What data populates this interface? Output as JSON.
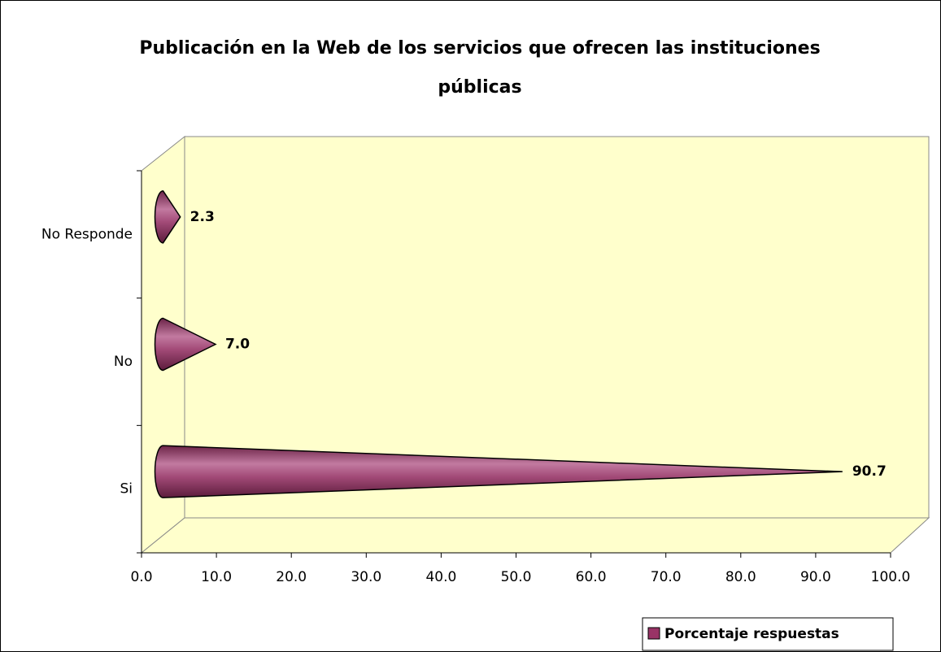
{
  "chart_data": {
    "type": "cone-bar",
    "title": "Publicación en la Web de los servicios que ofrecen las instituciones públicas",
    "categories": [
      "Si",
      "No",
      "No Responde"
    ],
    "series": [
      {
        "name": "Porcentaje respuestas",
        "color": "#993366",
        "values": [
          90.7,
          7.0,
          2.3
        ],
        "value_labels": [
          "90.7",
          "7.0",
          "2.3"
        ]
      }
    ],
    "xlim": [
      0,
      100
    ],
    "xticks": [
      {
        "value": 0,
        "label": "0.0"
      },
      {
        "value": 10,
        "label": "10.0"
      },
      {
        "value": 20,
        "label": "20.0"
      },
      {
        "value": 30,
        "label": "30.0"
      },
      {
        "value": 40,
        "label": "40.0"
      },
      {
        "value": 50,
        "label": "50.0"
      },
      {
        "value": 60,
        "label": "60.0"
      },
      {
        "value": 70,
        "label": "70.0"
      },
      {
        "value": 80,
        "label": "80.0"
      },
      {
        "value": 90,
        "label": "90.0"
      },
      {
        "value": 100,
        "label": "100.0"
      }
    ],
    "legend": "bottom-right"
  }
}
